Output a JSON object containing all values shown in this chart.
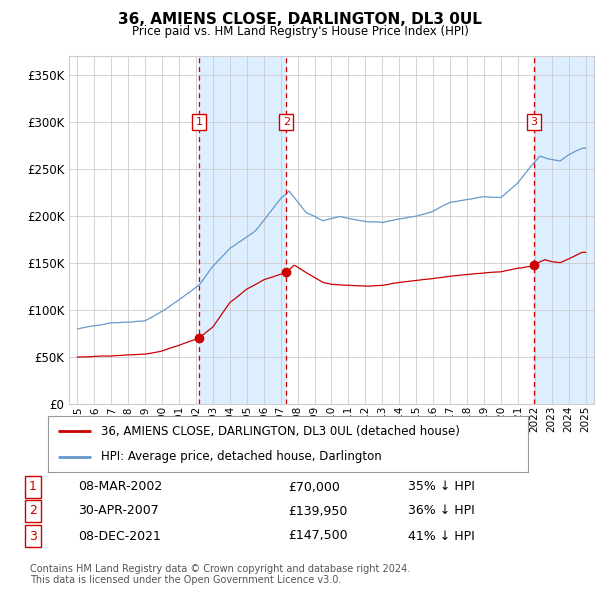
{
  "title": "36, AMIENS CLOSE, DARLINGTON, DL3 0UL",
  "subtitle": "Price paid vs. HM Land Registry's House Price Index (HPI)",
  "legend_label_red": "36, AMIENS CLOSE, DARLINGTON, DL3 0UL (detached house)",
  "legend_label_blue": "HPI: Average price, detached house, Darlington",
  "footer": "Contains HM Land Registry data © Crown copyright and database right 2024.\nThis data is licensed under the Open Government Licence v3.0.",
  "transactions": [
    {
      "num": 1,
      "date": "08-MAR-2002",
      "price": "£70,000",
      "pct": "35% ↓ HPI",
      "x_year": 2002.19
    },
    {
      "num": 2,
      "date": "30-APR-2007",
      "price": "£139,950",
      "pct": "36% ↓ HPI",
      "x_year": 2007.33
    },
    {
      "num": 3,
      "date": "08-DEC-2021",
      "price": "£147,500",
      "pct": "41% ↓ HPI",
      "x_year": 2021.94
    }
  ],
  "red_color": "#cc0000",
  "blue_color": "#6699cc",
  "shade_color": "#ddeeff",
  "grid_color": "#cccccc",
  "background_color": "#ffffff",
  "ylim": [
    0,
    370000
  ],
  "xlim_start": 1994.5,
  "xlim_end": 2025.5,
  "hpi_anchors": [
    [
      1995.0,
      80000
    ],
    [
      1996.0,
      83000
    ],
    [
      1997.0,
      87000
    ],
    [
      1998.0,
      88000
    ],
    [
      1999.0,
      90000
    ],
    [
      2000.0,
      100000
    ],
    [
      2001.0,
      112000
    ],
    [
      2002.2,
      128000
    ],
    [
      2003.0,
      148000
    ],
    [
      2004.0,
      167000
    ],
    [
      2005.5,
      185000
    ],
    [
      2007.0,
      220000
    ],
    [
      2007.5,
      228000
    ],
    [
      2008.5,
      205000
    ],
    [
      2009.5,
      196000
    ],
    [
      2010.5,
      200000
    ],
    [
      2012.0,
      195000
    ],
    [
      2013.0,
      193000
    ],
    [
      2014.0,
      197000
    ],
    [
      2015.0,
      200000
    ],
    [
      2016.0,
      205000
    ],
    [
      2017.0,
      215000
    ],
    [
      2018.0,
      218000
    ],
    [
      2019.0,
      221000
    ],
    [
      2020.0,
      220000
    ],
    [
      2021.0,
      235000
    ],
    [
      2021.9,
      255000
    ],
    [
      2022.3,
      263000
    ],
    [
      2022.8,
      260000
    ],
    [
      2023.5,
      258000
    ],
    [
      2024.0,
      265000
    ],
    [
      2024.8,
      272000
    ]
  ],
  "red_anchors": [
    [
      1995.0,
      50000
    ],
    [
      1996.0,
      50500
    ],
    [
      1997.0,
      51000
    ],
    [
      1998.0,
      52000
    ],
    [
      1999.0,
      53000
    ],
    [
      2000.0,
      56000
    ],
    [
      2001.0,
      62000
    ],
    [
      2002.19,
      70000
    ],
    [
      2003.0,
      82000
    ],
    [
      2004.0,
      108000
    ],
    [
      2005.0,
      122000
    ],
    [
      2006.0,
      132000
    ],
    [
      2007.33,
      139950
    ],
    [
      2007.8,
      148000
    ],
    [
      2008.5,
      140000
    ],
    [
      2009.5,
      130000
    ],
    [
      2010.0,
      128000
    ],
    [
      2011.0,
      127000
    ],
    [
      2012.0,
      126000
    ],
    [
      2013.0,
      127000
    ],
    [
      2014.0,
      130000
    ],
    [
      2015.0,
      132000
    ],
    [
      2016.0,
      134000
    ],
    [
      2017.0,
      136000
    ],
    [
      2018.0,
      138000
    ],
    [
      2019.0,
      140000
    ],
    [
      2020.0,
      141000
    ],
    [
      2021.0,
      145000
    ],
    [
      2021.94,
      147500
    ],
    [
      2022.2,
      151000
    ],
    [
      2022.6,
      154000
    ],
    [
      2023.0,
      152000
    ],
    [
      2023.5,
      151000
    ],
    [
      2024.0,
      155000
    ],
    [
      2024.8,
      162000
    ]
  ]
}
